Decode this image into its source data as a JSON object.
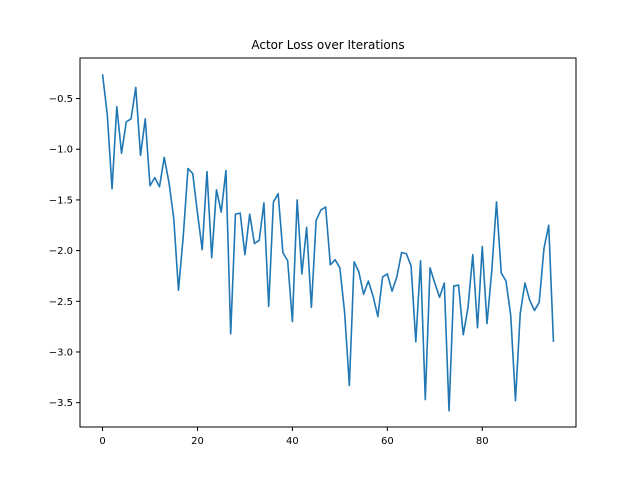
{
  "chart_data": {
    "type": "line",
    "title": "Actor Loss over Iterations",
    "xlabel": "",
    "ylabel": "",
    "xlim": [
      -4.75,
      99.75
    ],
    "ylim": [
      -3.74,
      -0.1
    ],
    "xticks": [
      0,
      20,
      40,
      60,
      80
    ],
    "yticks": [
      -3.5,
      -3.0,
      -2.5,
      -2.0,
      -1.5,
      -1.0,
      -0.5
    ],
    "ytick_labels": [
      "−3.5",
      "−3.0",
      "−2.5",
      "−2.0",
      "−1.5",
      "−1.0",
      "−0.5"
    ],
    "grid": false,
    "line_color": "#1f77b4",
    "series": [
      {
        "x": [
          0,
          1,
          2,
          3,
          4,
          5,
          6,
          7,
          8,
          9,
          10,
          11,
          12,
          13,
          14,
          15,
          16,
          17,
          18,
          19,
          20,
          21,
          22,
          23,
          24,
          25,
          26,
          27,
          28,
          29,
          30,
          31,
          32,
          33,
          34,
          35,
          36,
          37,
          38,
          39,
          40,
          41,
          42,
          43,
          44,
          45,
          46,
          47,
          48,
          49,
          50,
          51,
          52,
          53,
          54,
          55,
          56,
          57,
          58,
          59,
          60,
          61,
          62,
          63,
          64,
          65,
          66,
          67,
          68,
          69,
          70,
          71,
          72,
          73,
          74,
          75,
          76,
          77,
          78,
          79,
          80,
          81,
          82,
          83,
          84,
          85,
          86,
          87,
          88,
          89,
          90,
          91,
          92,
          93,
          94,
          95
        ],
        "values": [
          -0.26,
          -0.66,
          -1.39,
          -0.58,
          -1.04,
          -0.73,
          -0.7,
          -0.39,
          -1.06,
          -0.7,
          -1.36,
          -1.28,
          -1.37,
          -1.08,
          -1.33,
          -1.68,
          -2.39,
          -1.86,
          -1.19,
          -1.24,
          -1.63,
          -1.99,
          -1.22,
          -2.07,
          -1.4,
          -1.62,
          -1.21,
          -2.82,
          -1.64,
          -1.63,
          -2.04,
          -1.64,
          -1.93,
          -1.9,
          -1.53,
          -2.55,
          -1.52,
          -1.44,
          -2.02,
          -2.1,
          -2.7,
          -1.5,
          -2.23,
          -1.77,
          -2.56,
          -1.7,
          -1.6,
          -1.57,
          -2.14,
          -2.09,
          -2.17,
          -2.61,
          -3.33,
          -2.11,
          -2.21,
          -2.43,
          -2.3,
          -2.45,
          -2.65,
          -2.26,
          -2.23,
          -2.4,
          -2.26,
          -2.02,
          -2.03,
          -2.15,
          -2.9,
          -2.1,
          -3.47,
          -2.17,
          -2.32,
          -2.46,
          -2.32,
          -3.58,
          -2.35,
          -2.34,
          -2.83,
          -2.56,
          -2.04,
          -2.76,
          -1.96,
          -2.72,
          -2.2,
          -1.52,
          -2.22,
          -2.3,
          -2.64,
          -3.48,
          -2.62,
          -2.32,
          -2.49,
          -2.59,
          -2.51,
          -1.98,
          -1.75,
          -2.9
        ]
      }
    ]
  }
}
